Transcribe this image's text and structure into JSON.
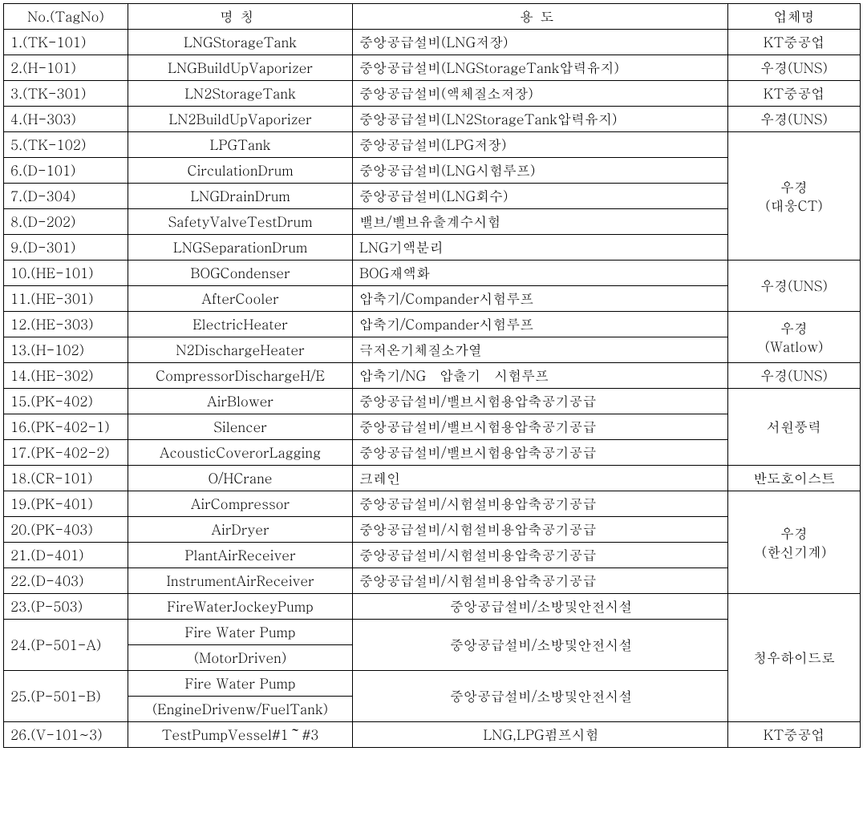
{
  "columns": {
    "no": "No.(TagNo)",
    "name": "명칭",
    "use": "용도",
    "vendor": "업체명"
  },
  "rows": [
    {
      "no": "1.(TK-101)",
      "name": "LNGStorageTank",
      "use": "중앙공급설비(LNG저장)",
      "vendor": "KT중공업"
    },
    {
      "no": "2.(H-101)",
      "name": "LNGBuildUpVaporizer",
      "use": "중앙공급설비(LNGStorageTank압력유지)",
      "vendor": "우경(UNS)"
    },
    {
      "no": "3.(TK-301)",
      "name": "LN2StorageTank",
      "use": "중앙공급설비(액체질소저장)",
      "vendor": "KT중공업"
    },
    {
      "no": "4.(H-303)",
      "name": "LN2BuildUpVaporizer",
      "use": "중앙공급설비(LN2StorageTank압력유지)",
      "vendor": "우경(UNS)"
    },
    {
      "no": "5.(TK-102)",
      "name": "LPGTank",
      "use": "중앙공급설비(LPG저장)"
    },
    {
      "no": "6.(D-101)",
      "name": "CirculationDrum",
      "use": "중앙공급설비(LNG시험루프)"
    },
    {
      "no": "7.(D-304)",
      "name": "LNGDrainDrum",
      "use": "중앙공급설비(LNG회수)"
    },
    {
      "no": "8.(D-202)",
      "name": "SafetyValveTestDrum",
      "use": "밸브/밸브유출계수시험"
    },
    {
      "no": "9.(D-301)",
      "name": "LNGSeparationDrum",
      "use": "LNG기액분리"
    },
    {
      "no": "10.(HE-101)",
      "name": "BOGCondenser",
      "use": "BOG재액화"
    },
    {
      "no": "11.(HE-301)",
      "name": "AfterCooler",
      "use": "압축기/Compander시험루프"
    },
    {
      "no": "12.(HE-303)",
      "name": "ElectricHeater",
      "use": "압축기/Compander시험루프"
    },
    {
      "no": "13.(H-102)",
      "name": "N2DischargeHeater",
      "use": "극저온기체질소가열"
    },
    {
      "no": "14.(HE-302)",
      "name": "CompressorDischargeH/E",
      "use": "압축기/NG　압출기　시험루프",
      "vendor": "우경(UNS)"
    },
    {
      "no": "15.(PK-402)",
      "name": "AirBlower",
      "use": "중앙공급설비/밸브시험용압축공기공급"
    },
    {
      "no": "16.(PK-402-1)",
      "name": "Silencer",
      "use": "중앙공급설비/밸브시험용압축공기공급"
    },
    {
      "no": "17.(PK-402-2)",
      "name": "AcousticCoverorLagging",
      "use": "중앙공급설비/밸브시험용압축공기공급"
    },
    {
      "no": "18.(CR-101)",
      "name": "O/HCrane",
      "use": "크레인",
      "vendor": "반도호이스트"
    },
    {
      "no": "19.(PK-401)",
      "name": "AirCompressor",
      "use": "중앙공급설비/시험설비용압축공기공급"
    },
    {
      "no": "20.(PK-403)",
      "name": "AirDryer",
      "use": "중앙공급설비/시험설비용압축공기공급"
    },
    {
      "no": "21.(D-401)",
      "name": "PlantAirReceiver",
      "use": "중앙공급설비/시험설비용압축공기공급"
    },
    {
      "no": "22.(D-403)",
      "name": "InstrumentAirReceiver",
      "use": "중앙공급설비/시험설비용압축공기공급"
    },
    {
      "no": "23.(P-503)",
      "name": "FireWaterJockeyPump",
      "use": "중앙공급설비/소방및안전시설",
      "use_center": true
    },
    {
      "no": "24.(P-501-A)",
      "name": "Fire  Water  Pump",
      "name2": "(MotorDriven)",
      "use": "중앙공급설비/소방및안전시설",
      "use_center": true
    },
    {
      "no": "25.(P-501-B)",
      "name": "Fire  Water  Pump",
      "name2": "(EngineDrivenw/FuelTank)",
      "use": "중앙공급설비/소방및안전시설",
      "use_center": true
    },
    {
      "no": "26.(V-101~3)",
      "name": "TestPumpVessel#1～#3",
      "use": "LNG,LPG펌프시험",
      "use_center": true,
      "vendor": "KT중공업"
    }
  ],
  "vendor_spans": {
    "g5": {
      "label1": "우경",
      "label2": "(대웅CT)"
    },
    "g10": "우경(UNS)",
    "g12": {
      "label1": "우경",
      "label2": "(Watlow)"
    },
    "g15": "서원풍력",
    "g19": {
      "label1": "우경",
      "label2": "(한신기계)"
    },
    "g23": "청우하이드로"
  }
}
